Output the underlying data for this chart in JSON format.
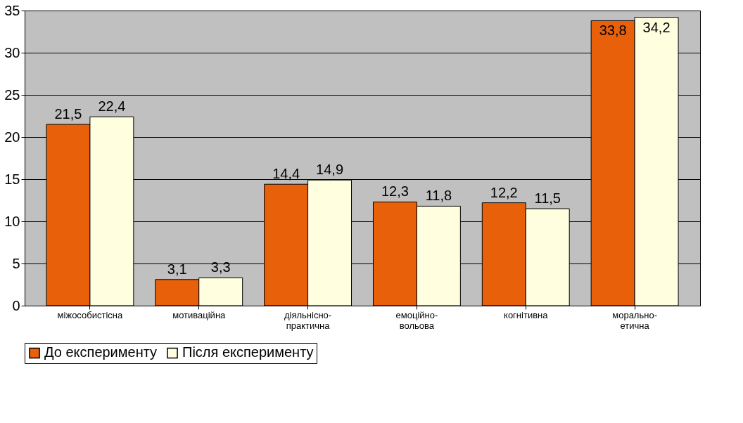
{
  "chart_data": {
    "type": "bar",
    "categories": [
      "міжособистісна",
      "мотиваційна",
      "діяльнісно-практична",
      "емоційно-вольова",
      "когнітивна",
      "морально-етична"
    ],
    "series": [
      {
        "name": "До експерименту",
        "color": "#e8600a",
        "values": [
          21.5,
          3.1,
          14.4,
          12.3,
          12.2,
          33.8
        ],
        "value_labels": [
          "21,5",
          "3,1",
          "14,4",
          "12,3",
          "12,2",
          "33,8"
        ]
      },
      {
        "name": "Після експерименту",
        "color": "#ffffe0",
        "values": [
          22.4,
          3.3,
          14.9,
          11.8,
          11.5,
          34.2
        ],
        "value_labels": [
          "22,4",
          "3,3",
          "14,9",
          "11,8",
          "11,5",
          "34,2"
        ]
      }
    ],
    "ylim": [
      0,
      35
    ],
    "yticks": [
      0,
      5,
      10,
      15,
      20,
      25,
      30,
      35
    ],
    "grid": "y",
    "legend": "bottom"
  }
}
